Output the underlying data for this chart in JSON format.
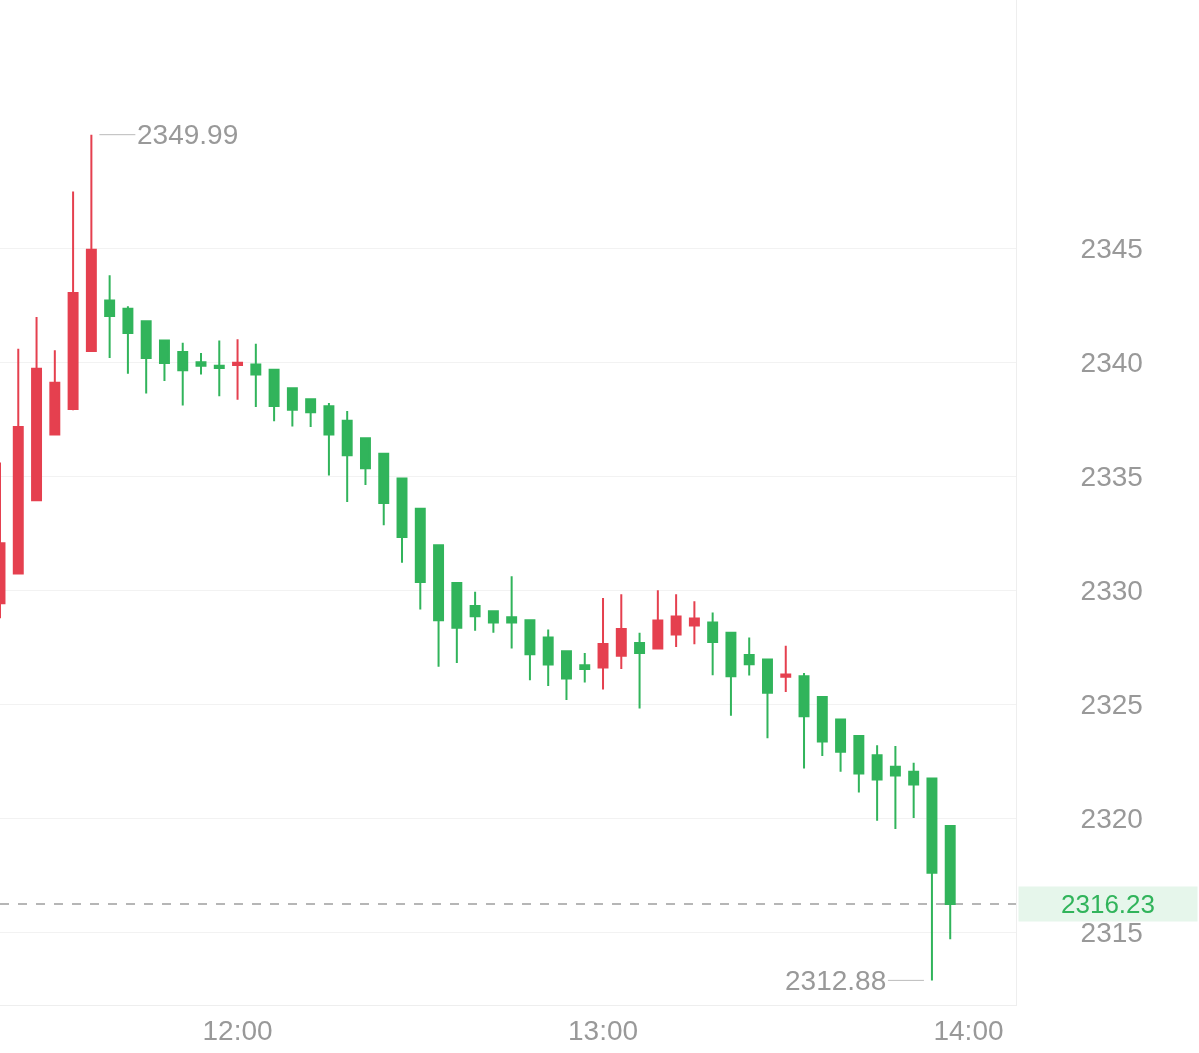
{
  "chart_data": {
    "type": "candlestick",
    "x": [
      11.35,
      11.4,
      11.45,
      11.5,
      11.55,
      11.6,
      11.65,
      11.7,
      11.75,
      11.8,
      11.85,
      11.9,
      11.95,
      12.0,
      12.05,
      12.1,
      12.15,
      12.2,
      12.25,
      12.3,
      12.35,
      12.4,
      12.45,
      12.5,
      12.55,
      12.6,
      12.65,
      12.7,
      12.75,
      12.8,
      12.85,
      12.9,
      12.95,
      13.0,
      13.05,
      13.1,
      13.15,
      13.2,
      13.25,
      13.3,
      13.35,
      13.4,
      13.45,
      13.5,
      13.55,
      13.6,
      13.65,
      13.7,
      13.75,
      13.8,
      13.85,
      13.9,
      13.95
    ],
    "ohlc": [
      [
        2329.43,
        2335.61,
        2328.77,
        2332.06
      ],
      [
        2330.73,
        2340.6,
        2330.7,
        2337.16
      ],
      [
        2333.95,
        2341.99,
        2333.9,
        2339.72
      ],
      [
        2336.83,
        2340.53,
        2336.8,
        2339.11
      ],
      [
        2337.95,
        2347.5,
        2337.9,
        2343.04
      ],
      [
        2340.5,
        2349.99,
        2340.45,
        2344.94
      ],
      [
        2342.71,
        2343.82,
        2340.19,
        2342.03
      ],
      [
        2342.35,
        2342.46,
        2339.5,
        2341.29
      ],
      [
        2341.8,
        2341.8,
        2338.63,
        2340.19
      ],
      [
        2340.96,
        2340.96,
        2339.18,
        2339.97
      ],
      [
        2340.45,
        2340.86,
        2338.11,
        2339.65
      ],
      [
        2340.0,
        2340.41,
        2339.47,
        2339.85
      ],
      [
        2339.85,
        2340.96,
        2338.51,
        2339.75
      ],
      [
        2339.88,
        2341.01,
        2338.36,
        2339.98
      ],
      [
        2339.91,
        2340.82,
        2338.04,
        2339.47
      ],
      [
        2339.68,
        2339.68,
        2337.41,
        2338.08
      ],
      [
        2338.86,
        2338.86,
        2337.19,
        2337.92
      ],
      [
        2338.38,
        2338.38,
        2337.16,
        2337.81
      ],
      [
        2338.07,
        2338.22,
        2335.04,
        2336.83
      ],
      [
        2337.44,
        2337.86,
        2333.87,
        2335.92
      ],
      [
        2336.67,
        2336.67,
        2334.62,
        2335.35
      ],
      [
        2335.99,
        2335.99,
        2332.85,
        2333.83
      ],
      [
        2334.9,
        2334.9,
        2331.21,
        2332.34
      ],
      [
        2333.58,
        2333.58,
        2329.15,
        2330.36
      ],
      [
        2331.97,
        2331.97,
        2326.64,
        2328.68
      ],
      [
        2330.32,
        2330.32,
        2326.81,
        2328.35
      ],
      [
        2329.31,
        2329.93,
        2328.22,
        2328.86
      ],
      [
        2329.08,
        2329.08,
        2328.14,
        2328.58
      ],
      [
        2328.82,
        2330.61,
        2327.44,
        2328.58
      ],
      [
        2328.68,
        2328.68,
        2326.05,
        2327.19
      ],
      [
        2327.93,
        2328.28,
        2325.8,
        2326.74
      ],
      [
        2327.32,
        2327.32,
        2325.18,
        2326.13
      ],
      [
        2326.71,
        2327.25,
        2325.95,
        2326.54
      ],
      [
        2326.61,
        2329.66,
        2325.64,
        2327.64
      ],
      [
        2327.12,
        2329.82,
        2326.54,
        2328.3
      ],
      [
        2327.69,
        2328.14,
        2324.81,
        2327.25
      ],
      [
        2327.44,
        2330.0,
        2327.4,
        2328.67
      ],
      [
        2328.06,
        2329.82,
        2327.51,
        2328.85
      ],
      [
        2328.45,
        2329.52,
        2327.63,
        2328.76
      ],
      [
        2328.58,
        2329.02,
        2326.27,
        2327.73
      ],
      [
        2328.14,
        2328.14,
        2324.49,
        2326.23
      ],
      [
        2327.16,
        2327.93,
        2326.26,
        2326.75
      ],
      [
        2326.96,
        2326.96,
        2323.5,
        2325.5
      ],
      [
        2326.2,
        2327.56,
        2325.53,
        2326.3
      ],
      [
        2326.23,
        2326.37,
        2322.18,
        2324.47
      ],
      [
        2325.32,
        2325.32,
        2322.73,
        2323.36
      ],
      [
        2324.33,
        2324.33,
        2322.03,
        2322.91
      ],
      [
        2323.6,
        2323.6,
        2321.13,
        2321.96
      ],
      [
        2322.76,
        2323.2,
        2319.88,
        2321.7
      ],
      [
        2322.25,
        2323.17,
        2319.52,
        2321.87
      ],
      [
        2322.03,
        2322.43,
        2320.01,
        2321.48
      ],
      [
        2321.74,
        2321.74,
        2312.88,
        2317.6
      ],
      [
        2319.65,
        2319.65,
        2314.68,
        2316.23
      ]
    ],
    "colors": [
      "#e5404f",
      "#e5404f",
      "#e5404f",
      "#e5404f",
      "#e5404f",
      "#e5404f",
      "#31b45b",
      "#31b45b",
      "#31b45b",
      "#31b45b",
      "#31b45b",
      "#31b45b",
      "#31b45b",
      "#e5404f",
      "#31b45b",
      "#31b45b",
      "#31b45b",
      "#31b45b",
      "#31b45b",
      "#31b45b",
      "#31b45b",
      "#31b45b",
      "#31b45b",
      "#31b45b",
      "#31b45b",
      "#31b45b",
      "#31b45b",
      "#31b45b",
      "#31b45b",
      "#31b45b",
      "#31b45b",
      "#31b45b",
      "#31b45b",
      "#e5404f",
      "#e5404f",
      "#31b45b",
      "#e5404f",
      "#e5404f",
      "#e5404f",
      "#31b45b",
      "#31b45b",
      "#31b45b",
      "#31b45b",
      "#e5404f",
      "#31b45b",
      "#31b45b",
      "#31b45b",
      "#31b45b",
      "#31b45b",
      "#31b45b",
      "#31b45b",
      "#31b45b",
      "#31b45b"
    ],
    "xlim": [
      11.35,
      14.13
    ],
    "xticks": [
      {
        "value": 12,
        "label": "12:00"
      },
      {
        "value": 13,
        "label": "13:00"
      },
      {
        "value": 14,
        "label": "14:00"
      }
    ],
    "ylim": [
      2311.8,
      2355.9
    ],
    "yticks": [
      2315,
      2320,
      2325,
      2330,
      2335,
      2340,
      2345
    ],
    "grid": "y",
    "ref_lines": [
      {
        "axis": "y",
        "value": 2316.23,
        "label": "2316.23",
        "color": "#9e9e9e",
        "line_style": "dashed"
      }
    ],
    "annotations": [
      {
        "text": "2349.99",
        "x": 11.6,
        "y": 2349.99
      },
      {
        "text": "2312.88",
        "x": 13.9,
        "y": 2312.88
      }
    ]
  }
}
